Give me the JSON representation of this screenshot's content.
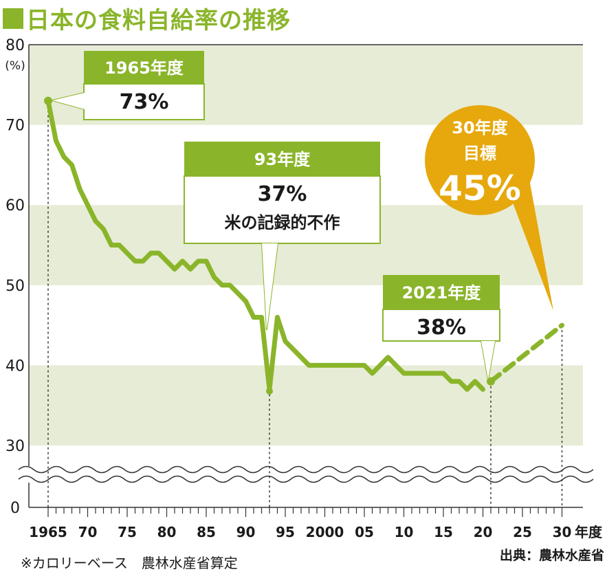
{
  "title": "日本の食料自給率の推移",
  "note": "※カロリーベース　農林水産省算定",
  "source": "出典：農林水産省",
  "colors": {
    "accent": "#8ab52a",
    "band": "#e7ecd6",
    "target": "#e6a80c"
  },
  "chart_data": {
    "type": "line",
    "unit_label": "(%)",
    "xlabel": "年度",
    "ylim": [
      0,
      80
    ],
    "y_ticks": [
      0,
      30,
      40,
      50,
      60,
      70,
      80
    ],
    "x_tick_labels": [
      {
        "x": 1965,
        "label": "1965"
      },
      {
        "x": 1970,
        "label": "70"
      },
      {
        "x": 1975,
        "label": "75"
      },
      {
        "x": 1980,
        "label": "80"
      },
      {
        "x": 1985,
        "label": "85"
      },
      {
        "x": 1990,
        "label": "90"
      },
      {
        "x": 1995,
        "label": "95"
      },
      {
        "x": 2000,
        "label": "2000"
      },
      {
        "x": 2005,
        "label": "05"
      },
      {
        "x": 2010,
        "label": "10"
      },
      {
        "x": 2015,
        "label": "15"
      },
      {
        "x": 2020,
        "label": "20"
      },
      {
        "x": 2025,
        "label": "25"
      },
      {
        "x": 2030,
        "label": "30"
      }
    ],
    "series": [
      {
        "x": [
          1965,
          1966,
          1967,
          1968,
          1969,
          1970,
          1971,
          1972,
          1973,
          1974,
          1975,
          1976,
          1977,
          1978,
          1979,
          1980,
          1981,
          1982,
          1983,
          1984,
          1985,
          1986,
          1987,
          1988,
          1989,
          1990,
          1991,
          1992,
          1993,
          1994,
          1995,
          1996,
          1997,
          1998,
          1999,
          2000,
          2001,
          2002,
          2003,
          2004,
          2005,
          2006,
          2007,
          2008,
          2009,
          2010,
          2011,
          2012,
          2013,
          2014,
          2015,
          2016,
          2017,
          2018,
          2019,
          2020
        ],
        "values": [
          73,
          68,
          66,
          65,
          62,
          60,
          58,
          57,
          55,
          55,
          54,
          53,
          53,
          54,
          54,
          53,
          52,
          53,
          52,
          53,
          53,
          51,
          50,
          50,
          49,
          48,
          46,
          46,
          37,
          46,
          43,
          42,
          41,
          40,
          40,
          40,
          40,
          40,
          40,
          40,
          40,
          39,
          40,
          41,
          40,
          39,
          39,
          39,
          39,
          39,
          39,
          38,
          38,
          37,
          38,
          37
        ]
      },
      {
        "x": [
          2021,
          2030
        ],
        "values": [
          38,
          45
        ],
        "style": "dashed"
      }
    ],
    "annotations": [
      {
        "header": "1965年度",
        "value": "73%",
        "point": [
          1965,
          73
        ]
      },
      {
        "header": "93年度",
        "value": "37%",
        "sub": "米の記録的不作",
        "point": [
          1993,
          37
        ]
      },
      {
        "header": "2021年度",
        "value": "38%",
        "point": [
          2021,
          38
        ]
      },
      {
        "header": "30年度",
        "sub": "目標",
        "value": "45%",
        "point": [
          2030,
          45
        ]
      }
    ]
  }
}
